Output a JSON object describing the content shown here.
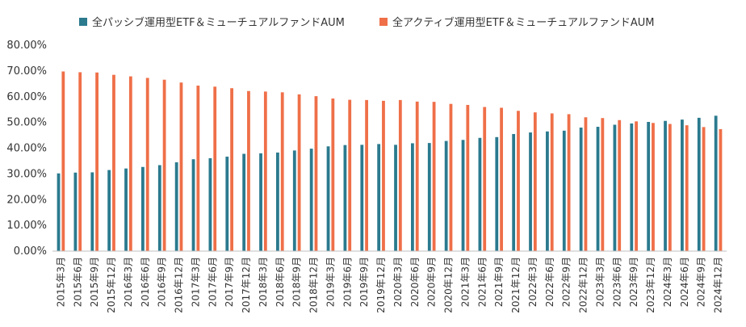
{
  "chart_data": {
    "type": "bar",
    "title": "",
    "xlabel": "",
    "ylabel": "",
    "ylim": [
      0,
      80
    ],
    "yticks": [
      "0.00%",
      "10.00%",
      "20.00%",
      "30.00%",
      "40.00%",
      "50.00%",
      "60.00%",
      "70.00%",
      "80.00%"
    ],
    "grid": false,
    "legend_position": "top",
    "categories": [
      "2015年3月",
      "2015年6月",
      "2015年9月",
      "2015年12月",
      "2016年3月",
      "2016年6月",
      "2016年9月",
      "2016年12月",
      "2017年3月",
      "2017年6月",
      "2017年9月",
      "2017年12月",
      "2018年3月",
      "2018年6月",
      "2018年9月",
      "2018年12月",
      "2019年3月",
      "2019年6月",
      "2019年9月",
      "2019年12月",
      "2020年3月",
      "2020年6月",
      "2020年9月",
      "2020年12月",
      "2021年3月",
      "2021年6月",
      "2021年9月",
      "2021年12月",
      "2022年3月",
      "2022年6月",
      "2022年9月",
      "2022年12月",
      "2023年3月",
      "2023年6月",
      "2023年9月",
      "2023年12月",
      "2024年3月",
      "2024年6月",
      "2024年9月",
      "2024年12月"
    ],
    "series": [
      {
        "name": "全パッシブ運用型ETF＆ミューチュアルファンドAUM",
        "color": "#2b7a8e",
        "values": [
          30.2,
          30.5,
          30.6,
          31.5,
          32.1,
          32.7,
          33.4,
          34.5,
          35.7,
          36.1,
          36.7,
          37.8,
          38.0,
          38.3,
          39.1,
          39.8,
          40.7,
          41.2,
          41.3,
          41.6,
          41.3,
          41.9,
          42.0,
          42.8,
          43.2,
          44.0,
          44.3,
          45.5,
          46.1,
          46.5,
          46.8,
          48.0,
          48.3,
          49.1,
          49.6,
          50.2,
          50.6,
          51.1,
          51.8,
          52.6
        ]
      },
      {
        "name": "全アクティブ運用型ETF＆ミューチュアルファンドAUM",
        "color": "#ef6f48",
        "values": [
          69.8,
          69.5,
          69.4,
          68.5,
          67.9,
          67.3,
          66.6,
          65.5,
          64.3,
          63.9,
          63.3,
          62.2,
          62.0,
          61.7,
          60.9,
          60.2,
          59.3,
          58.8,
          58.7,
          58.4,
          58.7,
          58.1,
          58.0,
          57.2,
          56.8,
          56.0,
          55.7,
          54.5,
          53.9,
          53.5,
          53.2,
          52.0,
          51.7,
          50.9,
          50.4,
          49.8,
          49.4,
          48.9,
          48.2,
          47.4
        ]
      }
    ]
  }
}
